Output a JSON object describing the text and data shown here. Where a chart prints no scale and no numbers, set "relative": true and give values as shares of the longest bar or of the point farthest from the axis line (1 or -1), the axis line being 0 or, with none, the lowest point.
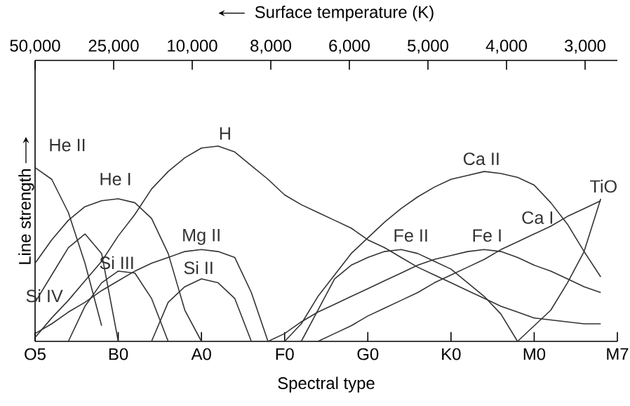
{
  "chart_data": {
    "type": "line",
    "relative": true,
    "xlabel": "Spectral type",
    "ylabel": "Line strength",
    "x2label": "Surface temperature (K)",
    "categories": [
      "O5",
      null,
      null,
      null,
      null,
      "B0",
      null,
      null,
      null,
      null,
      "A0",
      null,
      null,
      null,
      null,
      "F0",
      null,
      null,
      null,
      null,
      "G0",
      null,
      null,
      null,
      null,
      "K0",
      null,
      null,
      null,
      null,
      "M0",
      null,
      null,
      null,
      null,
      "M7"
    ],
    "annotations": [
      "50,000",
      "25,000",
      "10,000",
      "8,000",
      "6,000",
      "5,000",
      "4,000",
      "3,000"
    ],
    "marker": "none",
    "line_style": "solid",
    "series": [
      {
        "name": "He II",
        "color": "#333333",
        "values": [
          0.89,
          0.83,
          0.66,
          0.4,
          0.08,
          null,
          null,
          null,
          null,
          null,
          null,
          null,
          null,
          null,
          null,
          null,
          null,
          null,
          null,
          null,
          null,
          null,
          null,
          null,
          null,
          null,
          null,
          null,
          null,
          null,
          null,
          null,
          null,
          null,
          null,
          null
        ]
      },
      {
        "name": "He I",
        "color": "#333333",
        "values": [
          0.4,
          0.52,
          0.62,
          0.69,
          0.72,
          0.73,
          0.71,
          0.63,
          0.45,
          0.16,
          0,
          null,
          null,
          null,
          null,
          null,
          null,
          null,
          null,
          null,
          null,
          null,
          null,
          null,
          null,
          null,
          null,
          null,
          null,
          null,
          null,
          null,
          null,
          null,
          null,
          null
        ]
      },
      {
        "name": "Si IV",
        "color": "#333333",
        "values": [
          0.2,
          0.34,
          0.48,
          0.55,
          0.45,
          0,
          null,
          null,
          null,
          null,
          null,
          null,
          null,
          null,
          null,
          null,
          null,
          null,
          null,
          null,
          null,
          null,
          null,
          null,
          null,
          null,
          null,
          null,
          null,
          null,
          null,
          null,
          null,
          null,
          null,
          null
        ]
      },
      {
        "name": "Si III",
        "color": "#333333",
        "values": [
          null,
          null,
          0,
          0.18,
          0.3,
          0.36,
          0.35,
          0.22,
          0,
          null,
          null,
          null,
          null,
          null,
          null,
          null,
          null,
          null,
          null,
          null,
          null,
          null,
          null,
          null,
          null,
          null,
          null,
          null,
          null,
          null,
          null,
          null,
          null,
          null,
          null,
          null
        ]
      },
      {
        "name": "H",
        "color": "#333333",
        "values": [
          0.02,
          0.12,
          0.21,
          0.31,
          0.41,
          0.54,
          0.65,
          0.78,
          0.87,
          0.94,
          0.99,
          1.0,
          0.97,
          0.9,
          0.83,
          0.75,
          0.7,
          0.66,
          0.62,
          0.58,
          0.52,
          0.48,
          0.43,
          0.38,
          0.34,
          0.3,
          0.26,
          0.22,
          0.18,
          0.15,
          0.12,
          0.11,
          0.1,
          0.09,
          0.09,
          null
        ]
      },
      {
        "name": "Mg II",
        "color": "#333333",
        "values": [
          0.04,
          0.09,
          0.15,
          0.2,
          0.26,
          0.31,
          0.36,
          0.4,
          0.43,
          0.46,
          0.47,
          0.46,
          0.43,
          0.25,
          0,
          null,
          null,
          null,
          null,
          null,
          null,
          null,
          null,
          null,
          null,
          null,
          null,
          null,
          null,
          null,
          null,
          null,
          null,
          null,
          null,
          null
        ]
      },
      {
        "name": "Si II",
        "color": "#333333",
        "values": [
          null,
          null,
          null,
          null,
          null,
          null,
          null,
          0,
          0.2,
          0.28,
          0.32,
          0.3,
          0.22,
          0,
          null,
          null,
          null,
          null,
          null,
          null,
          null,
          null,
          null,
          null,
          null,
          null,
          null,
          null,
          null,
          null,
          null,
          null,
          null,
          null,
          null,
          null
        ]
      },
      {
        "name": "Ca II",
        "color": "#333333",
        "values": [
          null,
          null,
          null,
          null,
          null,
          null,
          null,
          null,
          null,
          null,
          null,
          null,
          null,
          null,
          null,
          0,
          0.09,
          0.23,
          0.34,
          0.45,
          0.53,
          0.61,
          0.68,
          0.74,
          0.79,
          0.83,
          0.85,
          0.87,
          0.86,
          0.84,
          0.8,
          0.71,
          0.6,
          0.46,
          0.33,
          null
        ]
      },
      {
        "name": "Fe II",
        "color": "#333333",
        "values": [
          null,
          null,
          null,
          null,
          null,
          null,
          null,
          null,
          null,
          null,
          null,
          null,
          null,
          null,
          null,
          null,
          0,
          0.16,
          0.32,
          0.39,
          0.43,
          0.46,
          0.47,
          0.45,
          0.41,
          0.37,
          0.3,
          0.23,
          0.14,
          0,
          null,
          null,
          null,
          null,
          null,
          null
        ]
      },
      {
        "name": "Fe I",
        "color": "#333333",
        "values": [
          null,
          null,
          null,
          null,
          null,
          null,
          null,
          null,
          null,
          null,
          null,
          null,
          null,
          null,
          0,
          0.04,
          0.1,
          0.15,
          0.19,
          0.23,
          0.27,
          0.31,
          0.35,
          0.39,
          0.42,
          0.44,
          0.46,
          0.47,
          0.46,
          0.43,
          0.39,
          0.36,
          0.32,
          0.28,
          0.25,
          null
        ]
      },
      {
        "name": "Ca I",
        "color": "#333333",
        "values": [
          null,
          null,
          null,
          null,
          null,
          null,
          null,
          null,
          null,
          null,
          null,
          null,
          null,
          null,
          null,
          null,
          null,
          0,
          0.04,
          0.08,
          0.13,
          0.17,
          0.21,
          0.25,
          0.3,
          0.34,
          0.38,
          0.42,
          0.47,
          0.51,
          0.55,
          0.59,
          0.64,
          0.68,
          0.72,
          null
        ]
      },
      {
        "name": "TiO",
        "color": "#333333",
        "values": [
          null,
          null,
          null,
          null,
          null,
          null,
          null,
          null,
          null,
          null,
          null,
          null,
          null,
          null,
          null,
          null,
          null,
          null,
          null,
          null,
          null,
          null,
          null,
          null,
          null,
          null,
          null,
          null,
          null,
          0,
          0.08,
          0.16,
          0.3,
          0.46,
          0.73,
          null
        ]
      }
    ]
  }
}
